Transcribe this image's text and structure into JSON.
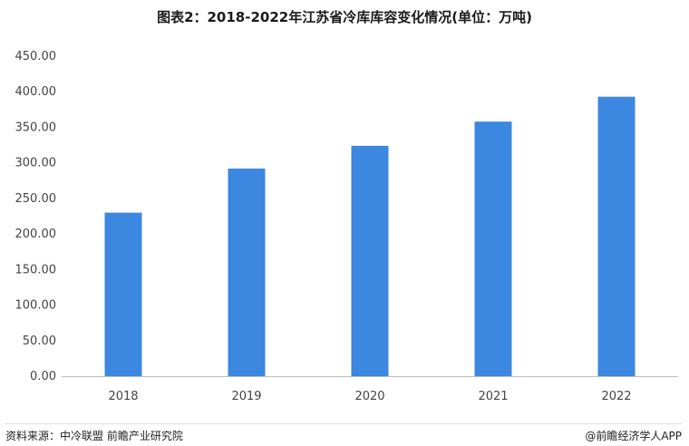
{
  "chart_data": {
    "type": "bar",
    "title": "图表2：2018-2022年江苏省冷库库容变化情况(单位：万吨)",
    "categories": [
      "2018",
      "2019",
      "2020",
      "2021",
      "2022"
    ],
    "values": [
      230,
      292,
      324,
      358,
      393
    ],
    "ylim": [
      0,
      450
    ],
    "yticks": [
      "0.00",
      "50.00",
      "100.00",
      "150.00",
      "200.00",
      "250.00",
      "300.00",
      "350.00",
      "400.00",
      "450.00"
    ],
    "grid": false,
    "bar_color": "#3c87e0"
  },
  "footer": {
    "source": "资料来源：中冷联盟 前瞻产业研究院",
    "app": "@前瞻经济学人APP"
  }
}
